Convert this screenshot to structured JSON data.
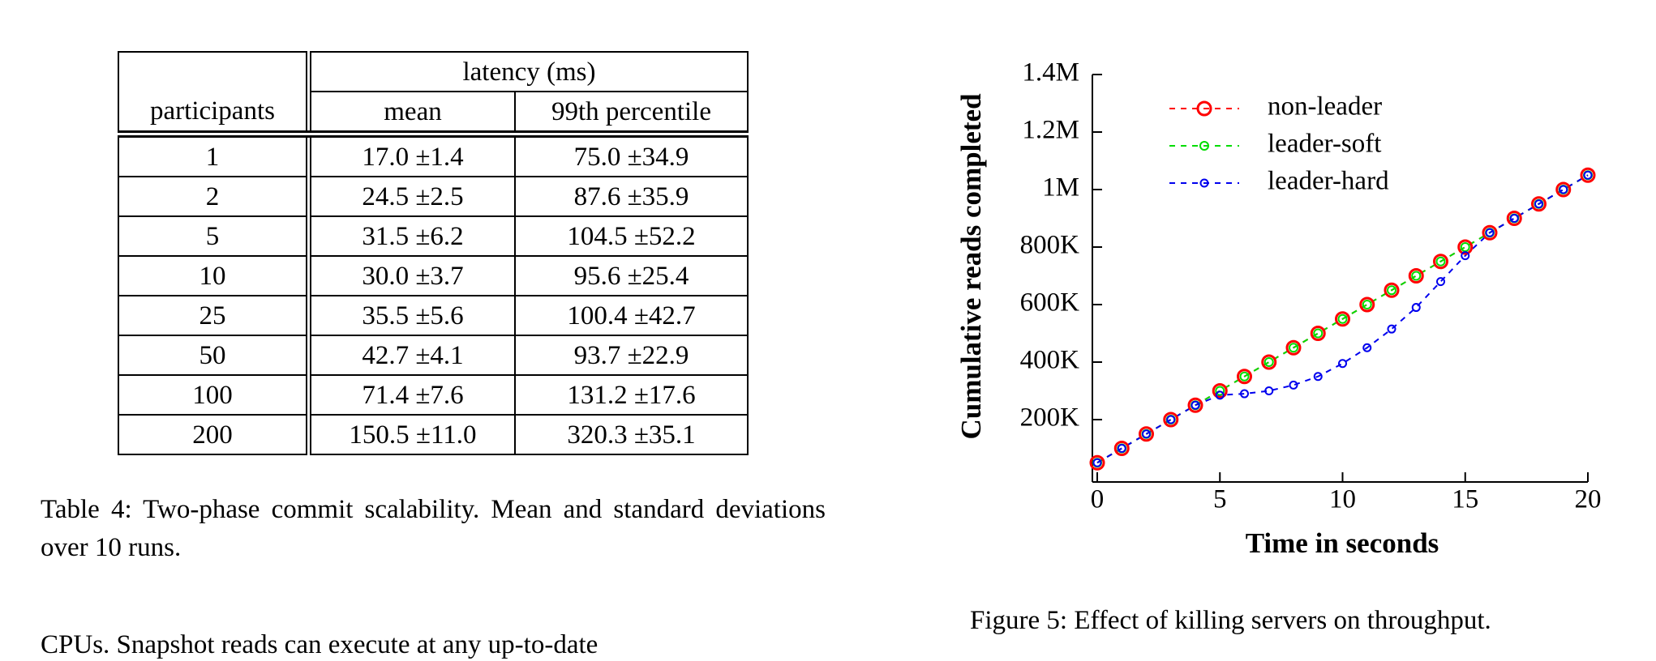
{
  "table": {
    "headers": {
      "participants": "participants",
      "group": "latency (ms)",
      "mean": "mean",
      "p99": "99th percentile"
    },
    "rows": [
      [
        "1",
        "17.0 ±1.4",
        "75.0 ±34.9"
      ],
      [
        "2",
        "24.5 ±2.5",
        "87.6 ±35.9"
      ],
      [
        "5",
        "31.5 ±6.2",
        "104.5 ±52.2"
      ],
      [
        "10",
        "30.0 ±3.7",
        "95.6 ±25.4"
      ],
      [
        "25",
        "35.5 ±5.6",
        "100.4 ±42.7"
      ],
      [
        "50",
        "42.7 ±4.1",
        "93.7 ±22.9"
      ],
      [
        "100",
        "71.4 ±7.6",
        "131.2 ±17.6"
      ],
      [
        "200",
        "150.5 ±11.0",
        "320.3 ±35.1"
      ]
    ],
    "caption": "Table 4: Two-phase commit scalability. Mean and standard deviations over 10 runs."
  },
  "body_text": "CPUs. Snapshot reads can execute at any up-to-date",
  "figure_caption": "Figure 5: Effect of killing servers on throughput.",
  "chart_data": {
    "type": "line",
    "x_label": "Time in seconds",
    "y_label": "Cumulative reads completed",
    "x": [
      0,
      1,
      2,
      3,
      4,
      5,
      6,
      7,
      8,
      9,
      10,
      11,
      12,
      13,
      14,
      15,
      16,
      17,
      18,
      19,
      20
    ],
    "xlim": [
      0,
      20
    ],
    "xticks": [
      0,
      5,
      10,
      15,
      20
    ],
    "ylim": [
      0,
      1400000
    ],
    "yticks": [
      {
        "value": 200000,
        "label": "200K"
      },
      {
        "value": 400000,
        "label": "400K"
      },
      {
        "value": 600000,
        "label": "600K"
      },
      {
        "value": 800000,
        "label": "800K"
      },
      {
        "value": 1000000,
        "label": "1M"
      },
      {
        "value": 1200000,
        "label": "1.2M"
      },
      {
        "value": 1400000,
        "label": "1.4M"
      }
    ],
    "legend": "upper left",
    "series": [
      {
        "name": "non-leader",
        "color": "#ff0000",
        "values": [
          50000,
          100000,
          150000,
          200000,
          250000,
          300000,
          350000,
          400000,
          450000,
          500000,
          550000,
          600000,
          650000,
          700000,
          750000,
          800000,
          850000,
          900000,
          950000,
          1000000,
          1050000
        ]
      },
      {
        "name": "leader-soft",
        "color": "#00dd00",
        "values": [
          50000,
          100000,
          150000,
          200000,
          250000,
          300000,
          350000,
          400000,
          450000,
          500000,
          550000,
          600000,
          650000,
          700000,
          750000,
          800000,
          850000,
          900000,
          950000,
          1000000,
          1050000
        ]
      },
      {
        "name": "leader-hard",
        "color": "#0000ee",
        "values": [
          50000,
          100000,
          150000,
          200000,
          250000,
          285000,
          290000,
          300000,
          320000,
          350000,
          395000,
          450000,
          515000,
          590000,
          680000,
          770000,
          850000,
          900000,
          950000,
          1000000,
          1050000
        ]
      }
    ]
  }
}
